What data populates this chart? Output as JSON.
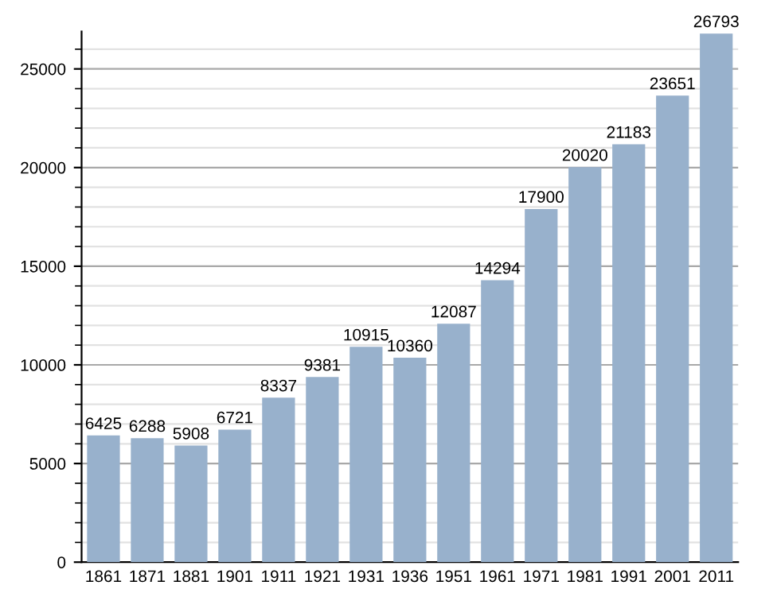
{
  "chart_data": {
    "type": "bar",
    "categories": [
      "1861",
      "1871",
      "1881",
      "1901",
      "1911",
      "1921",
      "1931",
      "1936",
      "1951",
      "1961",
      "1971",
      "1981",
      "1991",
      "2001",
      "2011"
    ],
    "values": [
      6425,
      6288,
      5908,
      6721,
      8337,
      9381,
      10915,
      10360,
      12087,
      14294,
      17900,
      20020,
      21183,
      23651,
      26793
    ],
    "color": "#98b1cc",
    "data_labels": true,
    "grid": "y",
    "ylim": [
      0,
      26900
    ],
    "yticks": [
      0,
      {
        "value": 1000,
        "label": null
      },
      {
        "value": 2000,
        "label": null
      },
      {
        "value": 3000,
        "label": null
      },
      {
        "value": 4000,
        "label": null
      },
      5000,
      {
        "value": 6000,
        "label": null
      },
      {
        "value": 7000,
        "label": null
      },
      {
        "value": 8000,
        "label": null
      },
      {
        "value": 9000,
        "label": null
      },
      10000,
      {
        "value": 11000,
        "label": null
      },
      {
        "value": 12000,
        "label": null
      },
      {
        "value": 13000,
        "label": null
      },
      {
        "value": 14000,
        "label": null
      },
      15000,
      {
        "value": 16000,
        "label": null
      },
      {
        "value": 17000,
        "label": null
      },
      {
        "value": 18000,
        "label": null
      },
      {
        "value": 19000,
        "label": null
      },
      20000,
      {
        "value": 21000,
        "label": null
      },
      {
        "value": 22000,
        "label": null
      },
      {
        "value": 23000,
        "label": null
      },
      {
        "value": 24000,
        "label": null
      },
      25000,
      {
        "value": 26000,
        "label": null
      }
    ]
  }
}
